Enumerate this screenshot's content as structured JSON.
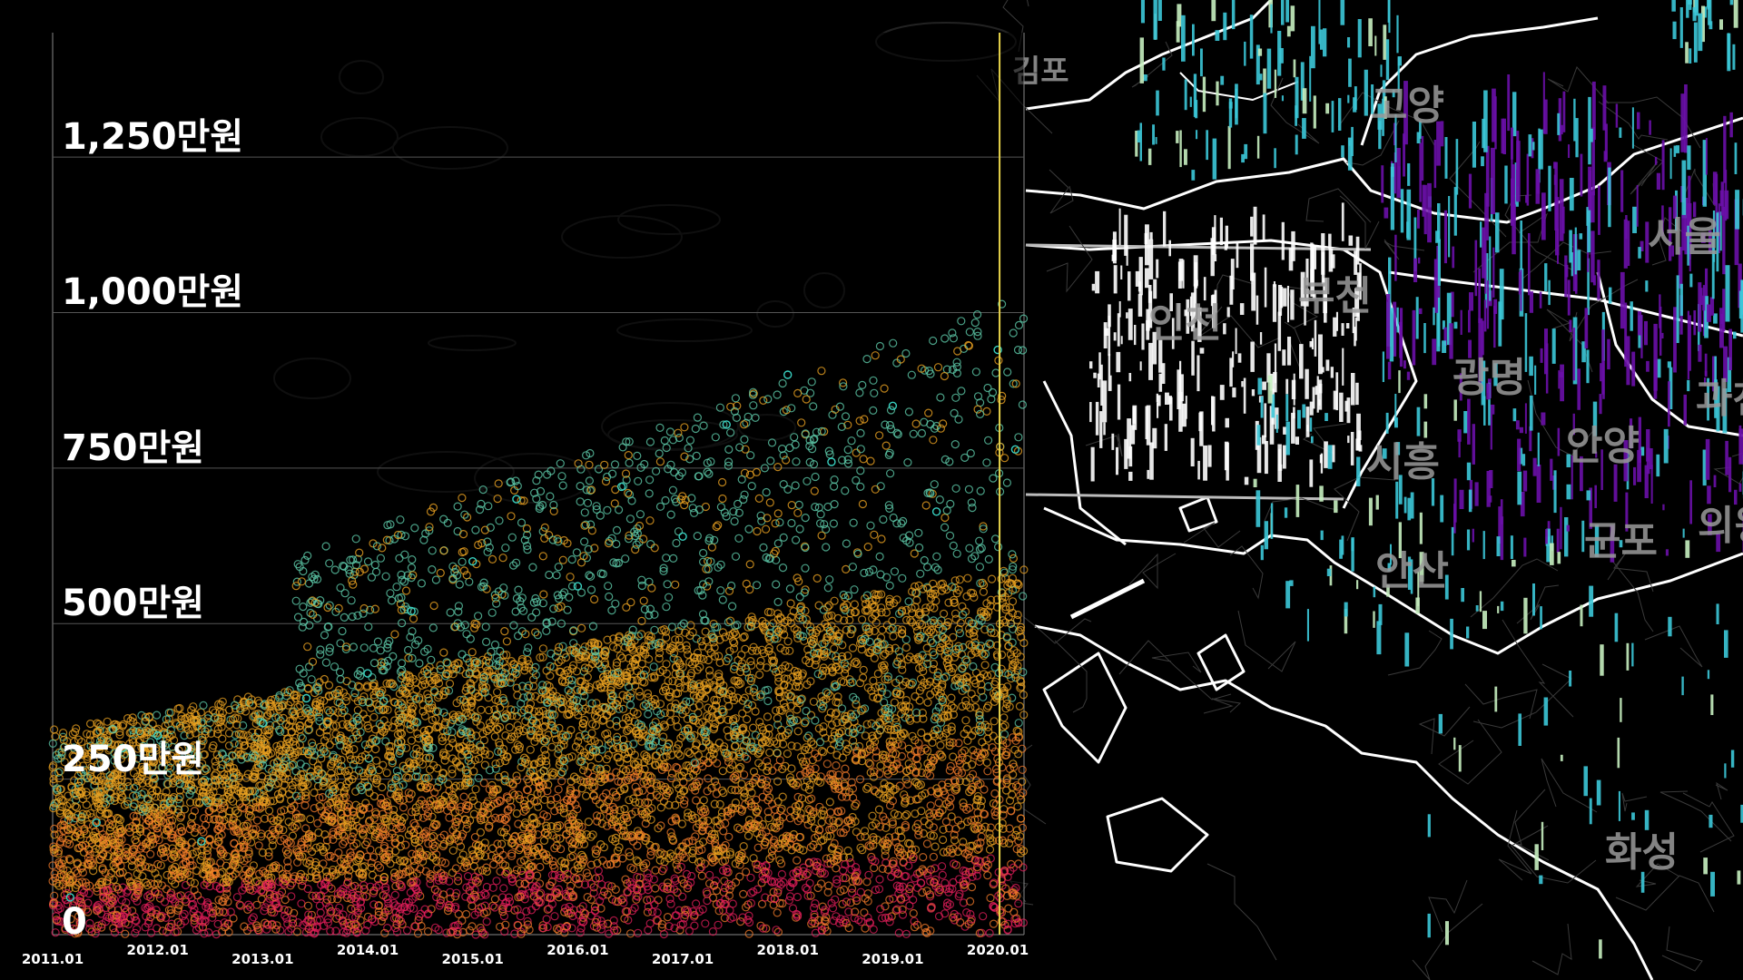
{
  "chart_data": {
    "type": "scatter",
    "title": "",
    "xlabel": "",
    "ylabel": "",
    "x_range": [
      "2011-01",
      "2020-04"
    ],
    "ylim": [
      0,
      1450
    ],
    "y_unit": "만원",
    "grid": true,
    "y_ticks": [
      {
        "value": 0,
        "label": "0"
      },
      {
        "value": 250,
        "label": "250만원"
      },
      {
        "value": 500,
        "label": "500만원"
      },
      {
        "value": 750,
        "label": "750만원"
      },
      {
        "value": 1000,
        "label": "1,000만원"
      },
      {
        "value": 1250,
        "label": "1,250만원"
      }
    ],
    "x_ticks": [
      {
        "value": "2011-01",
        "label": "2011.01"
      },
      {
        "value": "2012-01",
        "label": "2012.01"
      },
      {
        "value": "2013-01",
        "label": "2013.01"
      },
      {
        "value": "2014-01",
        "label": "2014.01"
      },
      {
        "value": "2015-01",
        "label": "2015.01"
      },
      {
        "value": "2016-01",
        "label": "2016.01"
      },
      {
        "value": "2017-01",
        "label": "2017.01"
      },
      {
        "value": "2018-01",
        "label": "2018.01"
      },
      {
        "value": "2019-01",
        "label": "2019.01"
      },
      {
        "value": "2020-01",
        "label": "2020.01"
      }
    ],
    "current_marker": "2020-01",
    "series_colors": [
      "#e01e5a",
      "#f07a2a",
      "#e8a020",
      "#5cc8a8",
      "#38d0c0"
    ],
    "points_sample": [
      {
        "x": "2011-03",
        "y": 60
      },
      {
        "x": "2011-06",
        "y": 180
      },
      {
        "x": "2011-09",
        "y": 300
      },
      {
        "x": "2012-01",
        "y": 320
      },
      {
        "x": "2012-06",
        "y": 150
      },
      {
        "x": "2013-01",
        "y": 340
      },
      {
        "x": "2013-06",
        "y": 380
      },
      {
        "x": "2014-01",
        "y": 420
      },
      {
        "x": "2014-06",
        "y": 520
      },
      {
        "x": "2015-01",
        "y": 600
      },
      {
        "x": "2015-06",
        "y": 700
      },
      {
        "x": "2016-01",
        "y": 560
      },
      {
        "x": "2016-06",
        "y": 720
      },
      {
        "x": "2017-01",
        "y": 640
      },
      {
        "x": "2017-06",
        "y": 820
      },
      {
        "x": "2018-01",
        "y": 900
      },
      {
        "x": "2018-06",
        "y": 760
      },
      {
        "x": "2019-01",
        "y": 850
      },
      {
        "x": "2019-06",
        "y": 680
      },
      {
        "x": "2020-01",
        "y": 940
      },
      {
        "x": "2020-03",
        "y": 780
      }
    ]
  },
  "map": {
    "region_labels": [
      "김포",
      "고양",
      "서울",
      "인천",
      "부천",
      "광명",
      "과천",
      "시흥",
      "안양",
      "군포",
      "안산",
      "의왕",
      "화성"
    ],
    "bar_colors": {
      "low": "#c6f0c0",
      "mid": "#3cc8d8",
      "high": "#6a10a8",
      "city": "#ffffff"
    }
  }
}
